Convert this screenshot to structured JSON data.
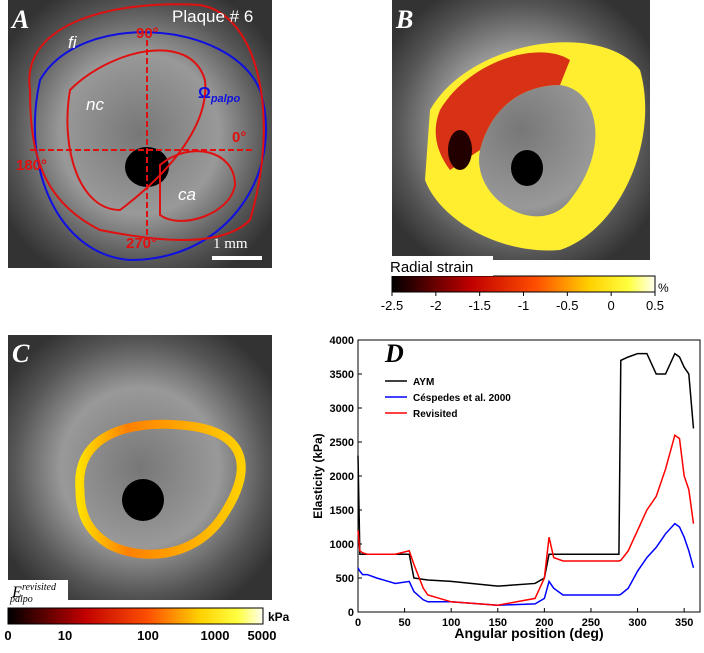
{
  "panel_a": {
    "letter": "A",
    "title": "Plaque # 6",
    "labels": [
      "fi",
      "nc",
      "ca"
    ],
    "angles": [
      "90°",
      "0°",
      "180°",
      "270°"
    ],
    "omega": {
      "main": "Ω",
      "sub": "palpo"
    },
    "scale": "1 mm"
  },
  "panel_b": {
    "letter": "B",
    "colorbar_label": "Radial strain",
    "colorbar_unit": "%",
    "colorbar_lim": [
      -2.5,
      0.5
    ],
    "colorbar_ticks": [
      -2.5,
      -2,
      -1.5,
      -1,
      -0.5,
      0,
      0.5
    ]
  },
  "panel_c": {
    "letter": "C",
    "label": {
      "main": "E",
      "sup": "revisited",
      "sub": "palpo"
    },
    "colorbar_unit": "kPa",
    "colorbar_ticks": [
      0,
      10,
      100,
      1000,
      5000
    ]
  },
  "chart_data": {
    "type": "line",
    "panel_letter": "D",
    "x_label": "Angular position (deg)",
    "y_label": "Elasticity (kPa)",
    "x": [
      0,
      2,
      5,
      10,
      20,
      40,
      55,
      60,
      70,
      75,
      100,
      150,
      190,
      200,
      205,
      210,
      220,
      250,
      280,
      282,
      290,
      300,
      310,
      320,
      330,
      340,
      345,
      350,
      355,
      360
    ],
    "series": [
      {
        "name": "AYM",
        "color": "#000000",
        "values": [
          2300,
          850,
          850,
          850,
          850,
          850,
          850,
          500,
          480,
          470,
          450,
          380,
          420,
          500,
          850,
          850,
          850,
          850,
          850,
          3700,
          3750,
          3800,
          3800,
          3500,
          3500,
          3800,
          3750,
          3600,
          3500,
          2700
        ]
      },
      {
        "name": "Céspedes et al. 2000",
        "color": "#0000ff",
        "values": [
          650,
          600,
          550,
          550,
          500,
          420,
          450,
          300,
          180,
          150,
          150,
          100,
          120,
          200,
          450,
          350,
          250,
          250,
          250,
          260,
          350,
          600,
          800,
          950,
          1150,
          1300,
          1250,
          1100,
          900,
          650
        ]
      },
      {
        "name": "Revisited",
        "color": "#ff0000",
        "values": [
          1200,
          900,
          870,
          850,
          850,
          850,
          900,
          700,
          350,
          250,
          150,
          100,
          200,
          500,
          1100,
          800,
          750,
          750,
          750,
          760,
          900,
          1200,
          1500,
          1700,
          2100,
          2600,
          2550,
          2000,
          1800,
          1300
        ]
      }
    ],
    "xlim": [
      0,
      367
    ],
    "ylim": [
      0,
      4000
    ],
    "xticks": [
      0,
      50,
      100,
      150,
      200,
      250,
      300,
      350
    ],
    "yticks": [
      0,
      500,
      1000,
      1500,
      2000,
      2500,
      3000,
      3500,
      4000
    ],
    "legend": "upper left"
  }
}
